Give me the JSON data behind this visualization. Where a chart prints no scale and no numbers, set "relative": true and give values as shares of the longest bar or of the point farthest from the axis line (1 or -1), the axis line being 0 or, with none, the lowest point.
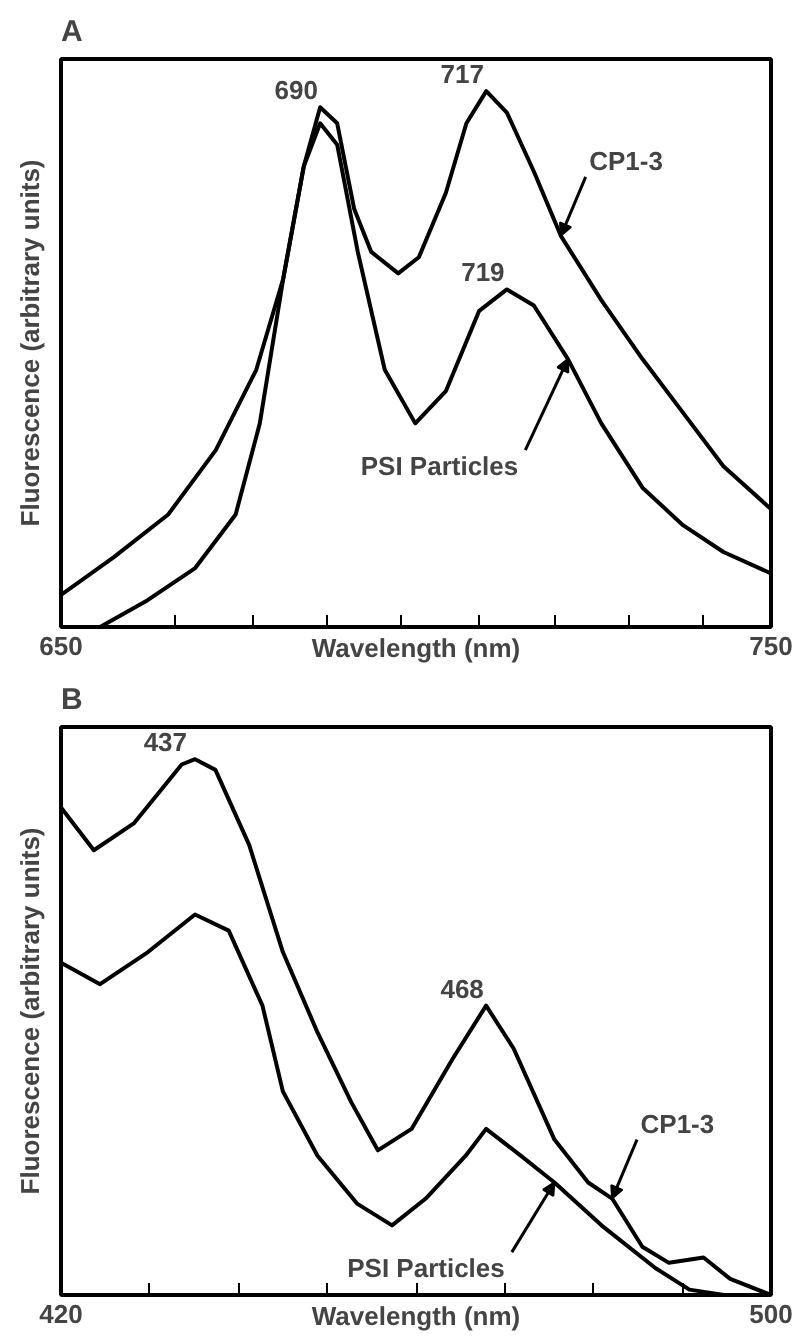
{
  "chart_data": [
    {
      "type": "line",
      "title": "A",
      "xlabel": "Wavelength (nm)",
      "ylabel": "Fluorescence (arbitrary units)",
      "relative": true,
      "tick_labels": "x",
      "grid": false,
      "legend": false,
      "line_style": "solid",
      "marker": "none",
      "xlim": [
        650,
        750
      ],
      "xticks": [
        650,
        {
          "value": 666,
          "label": null
        },
        {
          "value": 677,
          "label": null
        },
        {
          "value": 687.5,
          "label": null
        },
        {
          "value": 698,
          "label": null
        },
        {
          "value": 709,
          "label": null
        },
        {
          "value": 719.5,
          "label": null
        },
        {
          "value": 730,
          "label": null
        },
        {
          "value": 740.5,
          "label": null
        },
        750
      ],
      "series": [
        {
          "name": "CP1-3",
          "color": "#000000",
          "x": [
            650,
            657.4,
            665.1,
            671.8,
            677.5,
            681.3,
            684.2,
            686.5,
            688.9,
            691.3,
            693.7,
            697.5,
            700.4,
            704.2,
            707.1,
            709.9,
            712.8,
            716.6,
            720.4,
            726.1,
            731.9,
            737.6,
            743.3,
            750
          ],
          "values": [
            0.06,
            0.13,
            0.21,
            0.33,
            0.48,
            0.65,
            0.86,
            0.97,
            0.94,
            0.78,
            0.7,
            0.66,
            0.69,
            0.81,
            0.94,
            1.0,
            0.96,
            0.85,
            0.73,
            0.61,
            0.5,
            0.4,
            0.3,
            0.22
          ]
        },
        {
          "name": "PSI Particles",
          "color": "#000000",
          "x": [
            655.5,
            662.2,
            668.9,
            674.6,
            678.0,
            681.3,
            684.2,
            686.5,
            688.9,
            691.8,
            695.6,
            699.9,
            704.2,
            708.9,
            712.8,
            716.6,
            721.4,
            726.1,
            731.9,
            737.6,
            743.3,
            750
          ],
          "values": [
            0.0,
            0.05,
            0.11,
            0.21,
            0.38,
            0.65,
            0.86,
            0.94,
            0.9,
            0.7,
            0.48,
            0.38,
            0.44,
            0.59,
            0.63,
            0.6,
            0.5,
            0.38,
            0.26,
            0.19,
            0.14,
            0.1
          ]
        }
      ],
      "annotations": [
        {
          "text": "690",
          "x": 686.5,
          "y": 0.97
        },
        {
          "text": "717",
          "x": 709.9,
          "y": 1.0
        },
        {
          "text": "719",
          "x": 712.8,
          "y": 0.63
        }
      ]
    },
    {
      "type": "line",
      "title": "B",
      "xlabel": "Wavelength (nm)",
      "ylabel": "Fluorescence (arbitrary units)",
      "relative": true,
      "tick_labels": "x",
      "grid": false,
      "legend": false,
      "line_style": "solid",
      "marker": "none",
      "xlim": [
        420,
        500
      ],
      "xticks": [
        420,
        {
          "value": 430,
          "label": null
        },
        {
          "value": 440,
          "label": null
        },
        {
          "value": 450,
          "label": null
        },
        {
          "value": 460,
          "label": null
        },
        {
          "value": 470,
          "label": null
        },
        {
          "value": 480,
          "label": null
        },
        {
          "value": 490,
          "label": null
        },
        500
      ],
      "series": [
        {
          "name": "CP1-3",
          "color": "#000000",
          "x": [
            420,
            423.7,
            428.2,
            433.6,
            435.1,
            437.4,
            441.2,
            445.0,
            448.9,
            452.7,
            455.7,
            459.5,
            464.1,
            467.9,
            471.0,
            475.6,
            479.4,
            482.1,
            485.5,
            488.5,
            492.4,
            495.4,
            500
          ],
          "values": [
            0.91,
            0.83,
            0.88,
            0.99,
            1.0,
            0.98,
            0.84,
            0.64,
            0.49,
            0.36,
            0.27,
            0.31,
            0.44,
            0.54,
            0.46,
            0.29,
            0.21,
            0.18,
            0.09,
            0.06,
            0.07,
            0.03,
            0.0
          ]
        },
        {
          "name": "PSI Particles",
          "color": "#000000",
          "x": [
            420,
            424.4,
            429.8,
            435.1,
            438.9,
            442.7,
            445.0,
            448.9,
            453.4,
            457.3,
            461.1,
            465.6,
            467.9,
            471.8,
            475.6,
            480.9,
            487.0,
            490.8,
            494.7
          ],
          "values": [
            0.62,
            0.58,
            0.64,
            0.71,
            0.68,
            0.54,
            0.38,
            0.26,
            0.17,
            0.13,
            0.18,
            0.26,
            0.31,
            0.26,
            0.21,
            0.13,
            0.05,
            0.01,
            0.0
          ]
        }
      ],
      "annotations": [
        {
          "text": "437",
          "x": 435.1,
          "y": 1.0
        },
        {
          "text": "468",
          "x": 467.9,
          "y": 0.54
        }
      ]
    }
  ]
}
